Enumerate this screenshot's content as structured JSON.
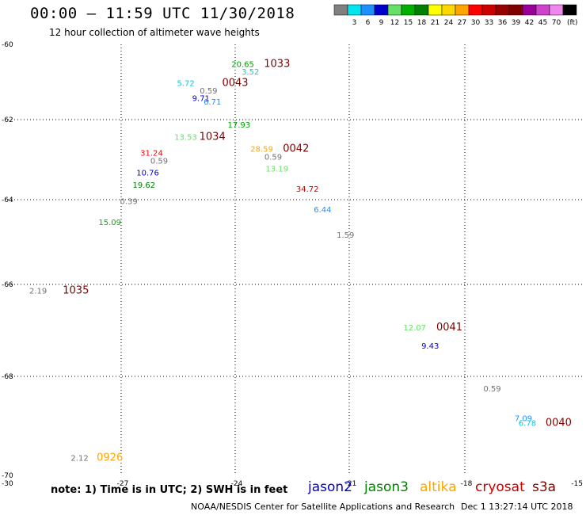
{
  "header": {
    "title": "00:00 – 11:59 UTC 11/30/2018",
    "subtitle": "12 hour collection of altimeter wave heights"
  },
  "legend": {
    "unit": "(ft)",
    "bins": [
      {
        "label": "",
        "color": "#808080"
      },
      {
        "label": "3",
        "color": "#00e5ee"
      },
      {
        "label": "6",
        "color": "#1e90ff"
      },
      {
        "label": "9",
        "color": "#0000cd"
      },
      {
        "label": "12",
        "color": "#66e066"
      },
      {
        "label": "15",
        "color": "#00b000"
      },
      {
        "label": "18",
        "color": "#008000"
      },
      {
        "label": "21",
        "color": "#ffff00"
      },
      {
        "label": "24",
        "color": "#ffd700"
      },
      {
        "label": "27",
        "color": "#ffa500"
      },
      {
        "label": "30",
        "color": "#ff0000"
      },
      {
        "label": "33",
        "color": "#cc0000"
      },
      {
        "label": "36",
        "color": "#990000"
      },
      {
        "label": "39",
        "color": "#800000"
      },
      {
        "label": "42",
        "color": "#990099"
      },
      {
        "label": "45",
        "color": "#cc44cc"
      },
      {
        "label": "70",
        "color": "#ee88ee"
      },
      {
        "label": "",
        "color": "#000000"
      }
    ]
  },
  "map": {
    "lon_range": [
      -30,
      -15
    ],
    "lat_range": [
      -70,
      -60
    ],
    "lon_ticks": [
      -27,
      -24,
      -21,
      -18
    ],
    "lat_ticks": [
      -62,
      -64,
      -66,
      -68
    ],
    "corner_labels": {
      "lon_min": "-30",
      "lon_max": "-15",
      "lat_max": "-60",
      "lat_min": "-70"
    },
    "grid": true
  },
  "observations": [
    {
      "text": "20.65",
      "lon": -23.8,
      "lat": -60.6,
      "color": "#00a000"
    },
    {
      "text": "1033",
      "lon": -22.9,
      "lat": -60.6,
      "color": "#800000",
      "time": true
    },
    {
      "text": "3.52",
      "lon": -23.6,
      "lat": -60.8,
      "color": "#00cfe0"
    },
    {
      "text": "5.72",
      "lon": -25.3,
      "lat": -61.1,
      "color": "#00cfe0"
    },
    {
      "text": "0043",
      "lon": -24.0,
      "lat": -61.1,
      "color": "#800000",
      "time": true
    },
    {
      "text": "0.59",
      "lon": -24.7,
      "lat": -61.3,
      "color": "#707070"
    },
    {
      "text": "9.71",
      "lon": -24.9,
      "lat": -61.5,
      "color": "#0000cd"
    },
    {
      "text": "6.71",
      "lon": -24.6,
      "lat": -61.6,
      "color": "#1e90ff"
    },
    {
      "text": "17.93",
      "lon": -23.9,
      "lat": -62.2,
      "color": "#00a000"
    },
    {
      "text": "13.53",
      "lon": -25.3,
      "lat": -62.5,
      "color": "#66e066"
    },
    {
      "text": "1034",
      "lon": -24.6,
      "lat": -62.5,
      "color": "#800000",
      "time": true
    },
    {
      "text": "28.59",
      "lon": -23.3,
      "lat": -62.8,
      "color": "#ffa500"
    },
    {
      "text": "0042",
      "lon": -22.4,
      "lat": -62.8,
      "color": "#800000",
      "time": true
    },
    {
      "text": "31.24",
      "lon": -26.2,
      "lat": -62.9,
      "color": "#ff0000"
    },
    {
      "text": "0.59",
      "lon": -23.0,
      "lat": -63.0,
      "color": "#707070"
    },
    {
      "text": "0.59",
      "lon": -26.0,
      "lat": -63.1,
      "color": "#707070"
    },
    {
      "text": "13.19",
      "lon": -22.9,
      "lat": -63.3,
      "color": "#66e066"
    },
    {
      "text": "10.76",
      "lon": -26.3,
      "lat": -63.4,
      "color": "#0000cd"
    },
    {
      "text": "19.62",
      "lon": -26.4,
      "lat": -63.7,
      "color": "#008000"
    },
    {
      "text": "34.72",
      "lon": -22.1,
      "lat": -63.8,
      "color": "#cc0000"
    },
    {
      "text": "0.39",
      "lon": -26.8,
      "lat": -64.1,
      "color": "#707070"
    },
    {
      "text": "6.44",
      "lon": -21.7,
      "lat": -64.3,
      "color": "#1e90ff"
    },
    {
      "text": "15.09",
      "lon": -27.3,
      "lat": -64.6,
      "color": "#00b000"
    },
    {
      "text": "1.59",
      "lon": -21.1,
      "lat": -64.9,
      "color": "#707070"
    },
    {
      "text": "2.19",
      "lon": -29.2,
      "lat": -66.2,
      "color": "#707070"
    },
    {
      "text": "1035",
      "lon": -28.2,
      "lat": -66.2,
      "color": "#800000",
      "time": true
    },
    {
      "text": "12.07",
      "lon": -19.3,
      "lat": -67.0,
      "color": "#66e066"
    },
    {
      "text": "0041",
      "lon": -18.4,
      "lat": -67.0,
      "color": "#800000",
      "time": true
    },
    {
      "text": "9.43",
      "lon": -18.9,
      "lat": -67.4,
      "color": "#0000cd"
    },
    {
      "text": "0.59",
      "lon": -17.3,
      "lat": -68.3,
      "color": "#707070"
    },
    {
      "text": "7.09",
      "lon": -16.5,
      "lat": -68.9,
      "color": "#1e90ff"
    },
    {
      "text": "6.78",
      "lon": -16.4,
      "lat": -69.0,
      "color": "#00cfe0"
    },
    {
      "text": "0040",
      "lon": -15.6,
      "lat": -69.0,
      "color": "#800000",
      "time": true
    },
    {
      "text": "2.12",
      "lon": -28.1,
      "lat": -69.7,
      "color": "#707070"
    },
    {
      "text": "0926",
      "lon": -27.3,
      "lat": -69.7,
      "color": "#ffa500",
      "time": true
    }
  ],
  "note": "note: 1) Time is in UTC; 2) SWH is in feet",
  "missions": [
    {
      "name": "jason2",
      "color": "#0000cd"
    },
    {
      "name": "jason3",
      "color": "#008000"
    },
    {
      "name": "altika",
      "color": "#ffa500"
    },
    {
      "name": "cryosat",
      "color": "#cc0000"
    },
    {
      "name": "s3a",
      "color": "#800000"
    }
  ],
  "footer": {
    "credit": "NOAA/NESDIS Center for Satellite Applications and Research",
    "timestamp": "Dec  1 13:27:14 UTC 2018"
  }
}
